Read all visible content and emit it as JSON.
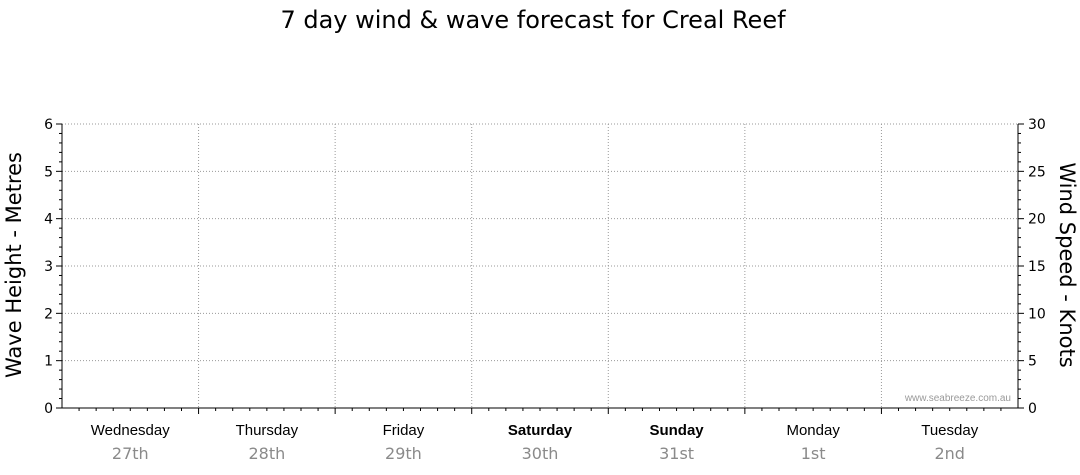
{
  "chart_data": {
    "type": "line",
    "title": "7 day wind & wave forecast for Creal Reef",
    "ylabel_left": "Wave Height - Metres",
    "ylabel_right": "Wind Speed - Knots",
    "ylim_left": [
      0,
      6
    ],
    "ylim_right": [
      0,
      30
    ],
    "yticks_left": [
      "0",
      "1",
      "2",
      "3",
      "4",
      "5",
      "6"
    ],
    "yticks_right": [
      "0",
      "5",
      "10",
      "15",
      "20",
      "25",
      "30"
    ],
    "days": [
      {
        "day": "Wednesday",
        "date": "27th",
        "weekend": false
      },
      {
        "day": "Thursday",
        "date": "28th",
        "weekend": false
      },
      {
        "day": "Friday",
        "date": "29th",
        "weekend": false
      },
      {
        "day": "Saturday",
        "date": "30th",
        "weekend": true
      },
      {
        "day": "Sunday",
        "date": "31st",
        "weekend": true
      },
      {
        "day": "Monday",
        "date": "1st",
        "weekend": false
      },
      {
        "day": "Tuesday",
        "date": "2nd",
        "weekend": false
      }
    ],
    "series": [],
    "grid": true,
    "watermark": "www.seabreeze.com.au"
  }
}
